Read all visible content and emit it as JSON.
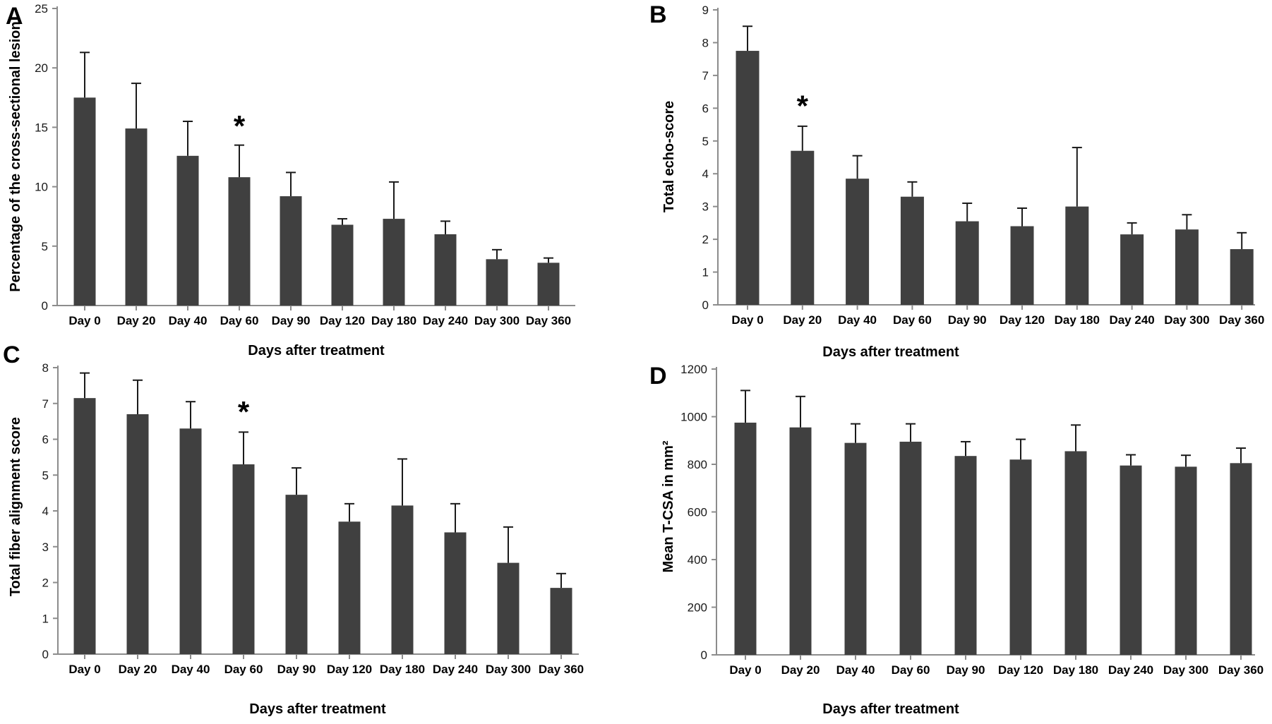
{
  "figure": {
    "background": "#ffffff",
    "colors": {
      "bar": "#404040",
      "axis": "#8c8c8c",
      "error": "#1a1a1a",
      "tick_text": "#1a1a1a",
      "label_text": "#000000"
    },
    "panel_letters": [
      "A",
      "B",
      "C",
      "D"
    ]
  },
  "chart_data": [
    {
      "panel": "A",
      "type": "bar",
      "ylabel": "Percentage of the cross-sectional lesion",
      "xlabel": "Days after treatment",
      "ylim": [
        0,
        25
      ],
      "ytick_step": 5,
      "grid": false,
      "legend": null,
      "categories": [
        "Day 0",
        "Day 20",
        "Day 40",
        "Day 60",
        "Day 90",
        "Day 120",
        "Day 180",
        "Day 240",
        "Day 300",
        "Day 360"
      ],
      "values": [
        17.5,
        14.9,
        12.6,
        10.8,
        9.2,
        6.8,
        7.3,
        6.0,
        3.9,
        3.6
      ],
      "errors_up": [
        3.8,
        3.8,
        2.9,
        2.7,
        2.0,
        0.5,
        3.1,
        1.1,
        0.8,
        0.4
      ],
      "star": {
        "category": "Day 60",
        "y": 15.2,
        "symbol": "*"
      }
    },
    {
      "panel": "B",
      "type": "bar",
      "ylabel": "Total echo-score",
      "xlabel": "Days after treatment",
      "ylim": [
        0,
        9
      ],
      "ytick_step": 1,
      "grid": false,
      "legend": null,
      "categories": [
        "Day 0",
        "Day 20",
        "Day 40",
        "Day 60",
        "Day 90",
        "Day 120",
        "Day 180",
        "Day 240",
        "Day 300",
        "Day 360"
      ],
      "values": [
        7.75,
        4.7,
        3.85,
        3.3,
        2.55,
        2.4,
        3.0,
        2.15,
        2.3,
        1.7
      ],
      "errors_up": [
        0.75,
        0.75,
        0.7,
        0.45,
        0.55,
        0.55,
        1.8,
        0.35,
        0.45,
        0.5
      ],
      "star": {
        "category": "Day 20",
        "y": 6.1,
        "symbol": "*"
      }
    },
    {
      "panel": "C",
      "type": "bar",
      "ylabel": "Total fiber alignment score",
      "xlabel": "Days after treatment",
      "ylim": [
        0,
        8
      ],
      "ytick_step": 1,
      "grid": false,
      "legend": null,
      "categories": [
        "Day 0",
        "Day 20",
        "Day 40",
        "Day 60",
        "Day 90",
        "Day 120",
        "Day 180",
        "Day 240",
        "Day 300",
        "Day 360"
      ],
      "values": [
        7.15,
        6.7,
        6.3,
        5.3,
        4.45,
        3.7,
        4.15,
        3.4,
        2.55,
        1.85
      ],
      "errors_up": [
        0.7,
        0.95,
        0.75,
        0.9,
        0.75,
        0.5,
        1.3,
        0.8,
        1.0,
        0.4
      ],
      "star": {
        "category": "Day 60",
        "y": 6.8,
        "symbol": "*"
      }
    },
    {
      "panel": "D",
      "type": "bar",
      "ylabel": "Mean T-CSA in mm²",
      "xlabel": "Days after treatment",
      "ylim": [
        0,
        1200
      ],
      "ytick_step": 200,
      "grid": false,
      "legend": null,
      "categories": [
        "Day 0",
        "Day 20",
        "Day 40",
        "Day 60",
        "Day 90",
        "Day 120",
        "Day 180",
        "Day 240",
        "Day 300",
        "Day 360"
      ],
      "values": [
        975,
        955,
        890,
        895,
        835,
        820,
        855,
        795,
        790,
        805
      ],
      "errors_up": [
        135,
        130,
        80,
        75,
        60,
        85,
        110,
        45,
        48,
        63
      ],
      "star": null
    }
  ]
}
